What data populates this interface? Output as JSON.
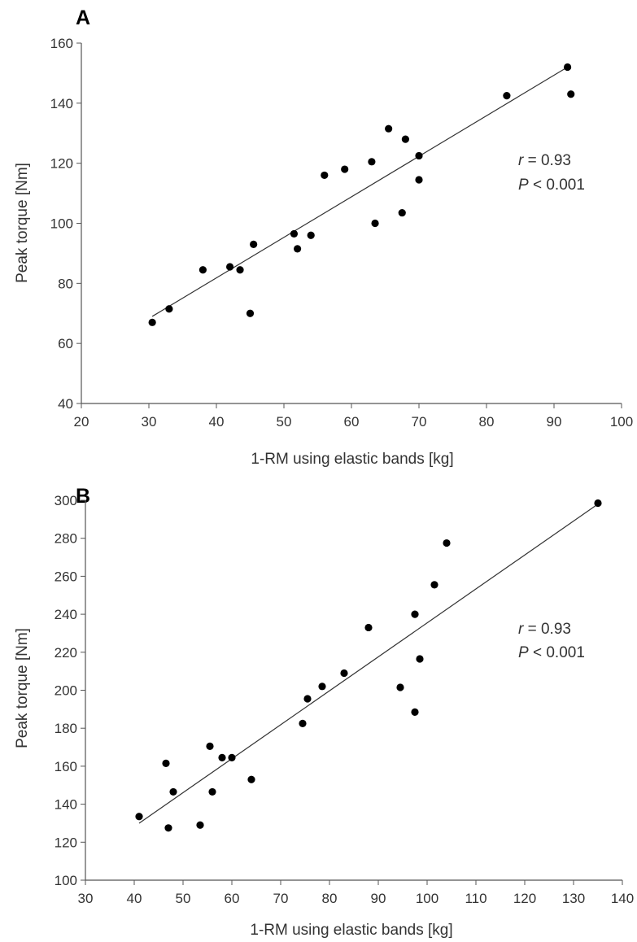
{
  "chart_data": [
    {
      "panel_label": "A",
      "type": "scatter",
      "xlabel": "1-RM using elastic bands [kg]",
      "ylabel": "Peak torque [Nm]",
      "xlim": [
        20,
        100
      ],
      "ylim": [
        40,
        160
      ],
      "xticks": [
        20,
        30,
        40,
        50,
        60,
        70,
        80,
        90,
        100
      ],
      "yticks": [
        40,
        60,
        80,
        100,
        120,
        140,
        160
      ],
      "x_tick_labels": [
        "20",
        "30",
        "40",
        "50",
        "60",
        "70",
        "80",
        "90",
        "100"
      ],
      "y_tick_labels": [
        "40",
        "60",
        "80",
        "100",
        "120",
        "140",
        "160"
      ],
      "grid": false,
      "annotation": {
        "r_symbol": "r",
        "r_value": "= 0.93",
        "p_symbol": "P",
        "p_value": "< 0.001"
      },
      "trendline": {
        "x": [
          30.5,
          92
        ],
        "y": [
          69,
          152
        ]
      },
      "points": [
        {
          "x": 30.5,
          "y": 67
        },
        {
          "x": 33,
          "y": 71.5
        },
        {
          "x": 38,
          "y": 84.5
        },
        {
          "x": 42,
          "y": 85.5
        },
        {
          "x": 43.5,
          "y": 84.5
        },
        {
          "x": 45,
          "y": 70
        },
        {
          "x": 45.5,
          "y": 93
        },
        {
          "x": 51.5,
          "y": 96.5
        },
        {
          "x": 52,
          "y": 91.5
        },
        {
          "x": 54,
          "y": 96
        },
        {
          "x": 56,
          "y": 116
        },
        {
          "x": 59,
          "y": 118
        },
        {
          "x": 63,
          "y": 120.5
        },
        {
          "x": 63.5,
          "y": 100
        },
        {
          "x": 65.5,
          "y": 131.5
        },
        {
          "x": 67.5,
          "y": 103.5
        },
        {
          "x": 68,
          "y": 128
        },
        {
          "x": 70,
          "y": 122.5
        },
        {
          "x": 70,
          "y": 114.5
        },
        {
          "x": 83,
          "y": 142.5
        },
        {
          "x": 92,
          "y": 152
        },
        {
          "x": 92.5,
          "y": 143
        }
      ]
    },
    {
      "panel_label": "B",
      "type": "scatter",
      "xlabel": "1-RM using elastic bands [kg]",
      "ylabel": "Peak torque [Nm]",
      "xlim": [
        30,
        140
      ],
      "ylim": [
        100,
        300
      ],
      "xticks": [
        30,
        40,
        50,
        60,
        70,
        80,
        90,
        100,
        110,
        120,
        130,
        140
      ],
      "yticks": [
        100,
        120,
        140,
        160,
        180,
        200,
        220,
        240,
        260,
        280,
        300
      ],
      "x_tick_labels": [
        "30",
        "40",
        "50",
        "60",
        "70",
        "80",
        "90",
        "100",
        "110",
        "120",
        "130",
        "140"
      ],
      "y_tick_labels": [
        "100",
        "120",
        "140",
        "160",
        "180",
        "200",
        "220",
        "240",
        "260",
        "280",
        "300"
      ],
      "grid": false,
      "annotation": {
        "r_symbol": "r",
        "r_value": "= 0.93",
        "p_symbol": "P",
        "p_value": "< 0.001"
      },
      "trendline": {
        "x": [
          41,
          135
        ],
        "y": [
          130,
          298
        ]
      },
      "points": [
        {
          "x": 41,
          "y": 133.5
        },
        {
          "x": 46.5,
          "y": 161.5
        },
        {
          "x": 47,
          "y": 127.5
        },
        {
          "x": 48,
          "y": 146.5
        },
        {
          "x": 53.5,
          "y": 129
        },
        {
          "x": 55.5,
          "y": 170.5
        },
        {
          "x": 56,
          "y": 146.5
        },
        {
          "x": 58,
          "y": 164.5
        },
        {
          "x": 60,
          "y": 164.5
        },
        {
          "x": 64,
          "y": 153
        },
        {
          "x": 74.5,
          "y": 182.5
        },
        {
          "x": 75.5,
          "y": 195.5
        },
        {
          "x": 78.5,
          "y": 202
        },
        {
          "x": 83,
          "y": 209
        },
        {
          "x": 88,
          "y": 233
        },
        {
          "x": 94.5,
          "y": 201.5
        },
        {
          "x": 97.5,
          "y": 188.5
        },
        {
          "x": 97.5,
          "y": 240
        },
        {
          "x": 98.5,
          "y": 216.5
        },
        {
          "x": 101.5,
          "y": 255.5
        },
        {
          "x": 104,
          "y": 277.5
        },
        {
          "x": 135,
          "y": 298.5
        }
      ]
    }
  ]
}
